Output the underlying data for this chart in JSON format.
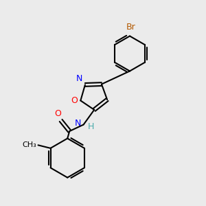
{
  "bg_color": "#ebebeb",
  "bond_color": "#000000",
  "N_color": "#0000ff",
  "O_color": "#ff0000",
  "Br_color": "#b35900",
  "H_color": "#4aabab",
  "lw": 1.5,
  "fs": 9,
  "dpi": 100,
  "figsize": [
    3.0,
    3.0
  ],
  "xlim": [
    0,
    10
  ],
  "ylim": [
    0,
    10
  ]
}
